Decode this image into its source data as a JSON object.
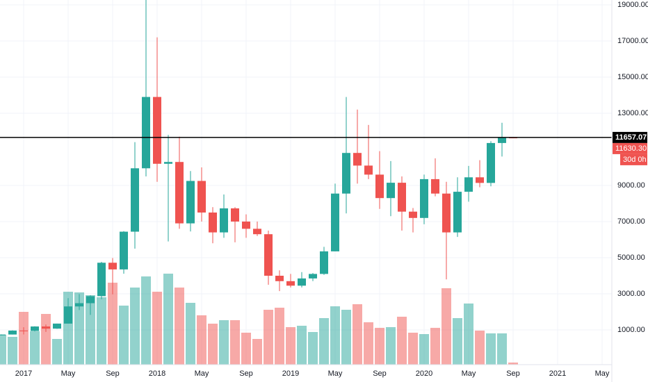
{
  "chart_data": {
    "type": "candlestick",
    "categories": [
      null,
      null,
      "2017",
      null,
      null,
      null,
      "May",
      null,
      null,
      null,
      "Sep",
      null,
      null,
      null,
      "2018",
      null,
      null,
      null,
      "May",
      null,
      null,
      null,
      "Sep",
      null,
      null,
      null,
      "2019",
      null,
      null,
      null,
      "May",
      null,
      null,
      null,
      "Sep",
      null,
      null,
      null,
      "2020",
      null,
      null,
      null,
      "May",
      null,
      null,
      null,
      "Sep",
      null,
      null,
      null,
      "2021",
      null,
      null,
      null,
      "May"
    ],
    "open": [
      700,
      745,
      963,
      940,
      1190,
      1070,
      1350,
      2300,
      2480,
      2870,
      4720,
      4350,
      6440,
      9950,
      13900,
      10200,
      10300,
      6900,
      9250,
      7500,
      6400,
      7730,
      7000,
      6600,
      6300,
      4000,
      3700,
      3450,
      3850,
      4100,
      5350,
      8550,
      10800,
      10100,
      9600,
      8300,
      9150,
      7550,
      7200,
      9350,
      8550,
      6400,
      8650,
      9450,
      9140,
      11350,
      11650,
      null,
      null,
      null,
      null,
      null,
      null,
      null,
      null
    ],
    "high": [
      750,
      975,
      1150,
      1200,
      1300,
      1350,
      2760,
      2980,
      2920,
      4770,
      4980,
      6470,
      11400,
      19800,
      17200,
      11800,
      11700,
      9800,
      10000,
      7800,
      8500,
      7800,
      7400,
      7000,
      6500,
      4300,
      4100,
      4200,
      4150,
      5600,
      9100,
      13900,
      13200,
      12350,
      10900,
      10350,
      9500,
      7750,
      9600,
      10500,
      9200,
      9450,
      10080,
      10400,
      11450,
      12470,
      11660,
      null,
      null,
      null,
      null,
      null,
      null,
      null,
      null
    ],
    "low": [
      690,
      745,
      750,
      920,
      890,
      1060,
      1350,
      2100,
      1830,
      2700,
      2970,
      4110,
      5500,
      9500,
      9200,
      5900,
      6600,
      6450,
      7000,
      5800,
      6100,
      5850,
      6100,
      6200,
      3500,
      3150,
      3350,
      3350,
      3700,
      4050,
      5350,
      7450,
      9100,
      9350,
      7700,
      7300,
      6500,
      6400,
      6850,
      8400,
      3800,
      6150,
      8100,
      8900,
      8950,
      10600,
      11630,
      null,
      null,
      null,
      null,
      null,
      null,
      null,
      null
    ],
    "close": [
      745,
      963,
      940,
      1190,
      1070,
      1350,
      2300,
      2480,
      2870,
      4720,
      4350,
      6440,
      9950,
      13900,
      10200,
      10300,
      6900,
      9250,
      7500,
      6400,
      7730,
      7000,
      6600,
      6300,
      4000,
      3700,
      3450,
      3850,
      4100,
      5350,
      8550,
      10800,
      10100,
      9600,
      8300,
      9150,
      7550,
      7200,
      9350,
      8550,
      6400,
      8650,
      9450,
      9140,
      11350,
      11650,
      11630.3,
      null,
      null,
      null,
      null,
      null,
      null,
      null,
      null
    ],
    "volume": [
      43,
      40,
      76,
      48,
      73,
      37,
      105,
      104,
      100,
      97,
      118,
      85,
      111,
      127,
      105,
      131,
      111,
      89,
      71,
      59,
      64,
      64,
      46,
      37,
      79,
      82,
      54,
      56,
      47,
      67,
      84,
      79,
      87,
      61,
      53,
      54,
      69,
      46,
      44,
      53,
      110,
      67,
      88,
      49,
      45,
      45,
      3,
      null,
      null,
      null,
      null,
      null,
      null,
      null,
      null
    ],
    "up_color": "#26a69a",
    "down_color": "#ef5350",
    "ylim": [
      -923,
      19269
    ],
    "yticks": [
      {
        "value": 1000,
        "label": "1000.00"
      },
      {
        "value": 3000,
        "label": "3000.00"
      },
      {
        "value": 5000,
        "label": "5000.00"
      },
      {
        "value": 7000,
        "label": "7000.00"
      },
      {
        "value": 9000,
        "label": "9000.00"
      },
      {
        "value": 13000,
        "label": "13000.00"
      },
      {
        "value": 15000,
        "label": "15000.00"
      },
      {
        "value": 17000,
        "label": "17000.00"
      },
      {
        "value": 19000,
        "label": "19000.00"
      }
    ],
    "grid": true,
    "price_line": 11657.07,
    "last_close_label": {
      "value": 11630.3,
      "label": "11630.30"
    },
    "countdown": "30d 0h"
  }
}
